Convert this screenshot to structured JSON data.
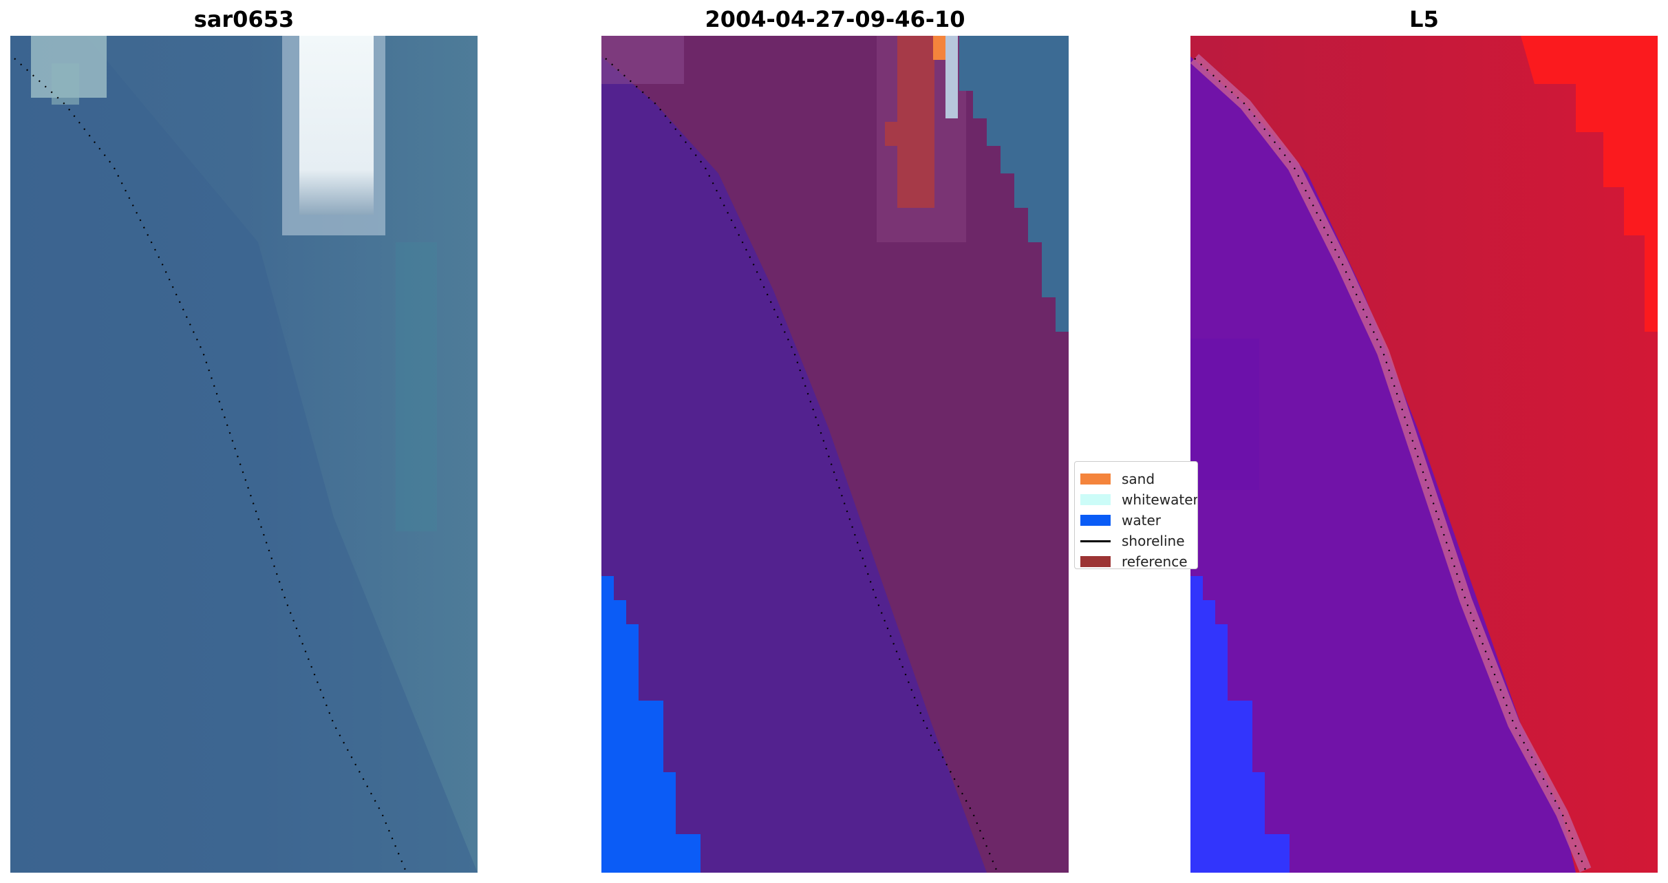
{
  "panels": [
    {
      "title": "sar0653"
    },
    {
      "title": "2004-04-27-09-46-10"
    },
    {
      "title": "L5"
    }
  ],
  "legend": {
    "items": [
      {
        "label": "sand",
        "kind": "patch",
        "color": "#f4843c"
      },
      {
        "label": "whitewater",
        "kind": "patch",
        "color": "#ccfcf8"
      },
      {
        "label": "water",
        "kind": "patch",
        "color": "#0a5cf6"
      },
      {
        "label": "shoreline",
        "kind": "line",
        "color": "#000000"
      },
      {
        "label": "reference",
        "kind": "patch",
        "color": "#9c3434"
      }
    ]
  },
  "colors": {
    "rgb_sea": "#3f6490",
    "rgb_beach": "#4c7697",
    "rgb_whitewater": "#eef5f8",
    "class_water_bg": "#52218f",
    "class_land_bg": "#6e2768",
    "class_blue": "#0b5cf6",
    "class_reference": "#a53b47",
    "mndwi_red": "#c31436",
    "mndwi_purple": "#7012a8",
    "mndwi_blue": "#3038fc",
    "shoreline_dots": "#000000"
  }
}
